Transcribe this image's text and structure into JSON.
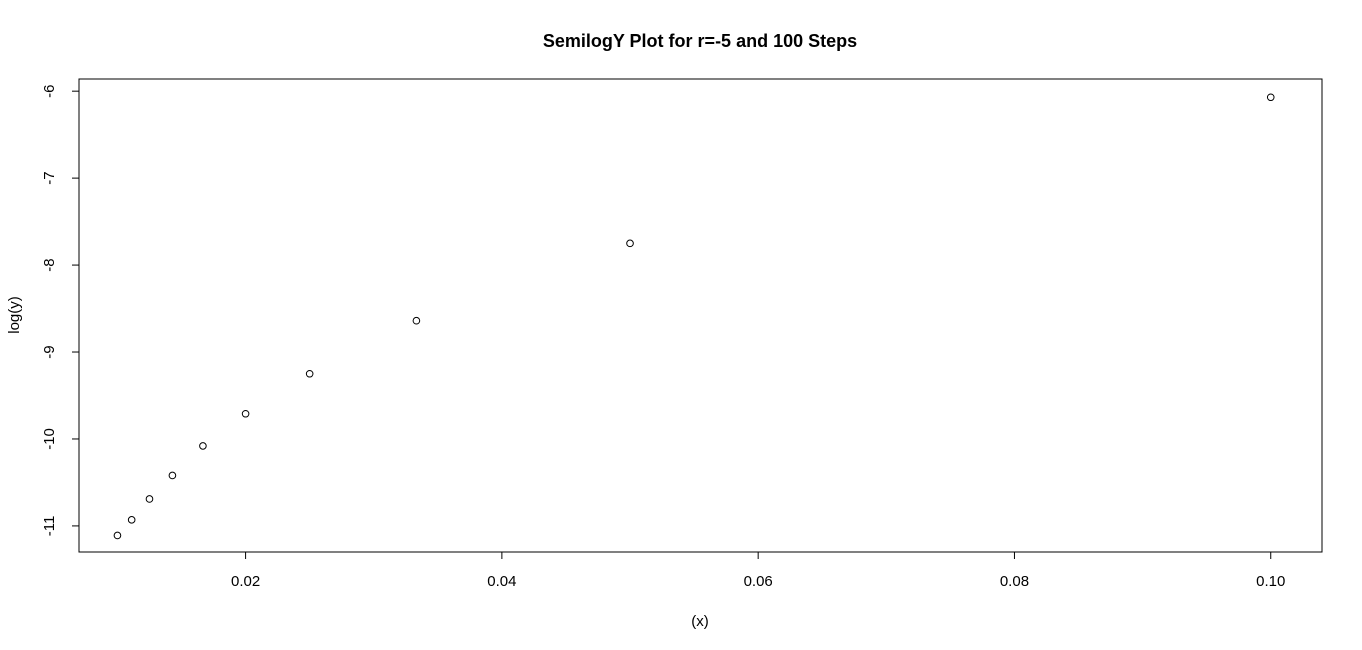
{
  "chart_data": {
    "type": "scatter",
    "title": "SemilogY Plot for r=-5 and 100 Steps",
    "xlabel": "(x)",
    "ylabel": "log(y)",
    "xlim": [
      0.007,
      0.104
    ],
    "ylim": [
      -11.3,
      -5.86
    ],
    "xticks": [
      0.02,
      0.04,
      0.06,
      0.08,
      0.1
    ],
    "xtick_labels": [
      "0.02",
      "0.04",
      "0.06",
      "0.08",
      "0.10"
    ],
    "yticks": [
      -11,
      -10,
      -9,
      -8,
      -7,
      -6
    ],
    "ytick_labels": [
      "-11",
      "-10",
      "-9",
      "-8",
      "-7",
      "-6"
    ],
    "grid": false,
    "legend": "none",
    "marker": "open-circle",
    "colors": {
      "marker": "#000000",
      "axis": "#000000",
      "background": "#ffffff"
    },
    "points": [
      {
        "x": 0.01,
        "y": -11.11
      },
      {
        "x": 0.01111,
        "y": -10.93
      },
      {
        "x": 0.0125,
        "y": -10.69
      },
      {
        "x": 0.01429,
        "y": -10.42
      },
      {
        "x": 0.01667,
        "y": -10.08
      },
      {
        "x": 0.02,
        "y": -9.71
      },
      {
        "x": 0.025,
        "y": -9.25
      },
      {
        "x": 0.03333,
        "y": -8.64
      },
      {
        "x": 0.05,
        "y": -7.75
      },
      {
        "x": 0.1,
        "y": -6.07
      }
    ]
  }
}
